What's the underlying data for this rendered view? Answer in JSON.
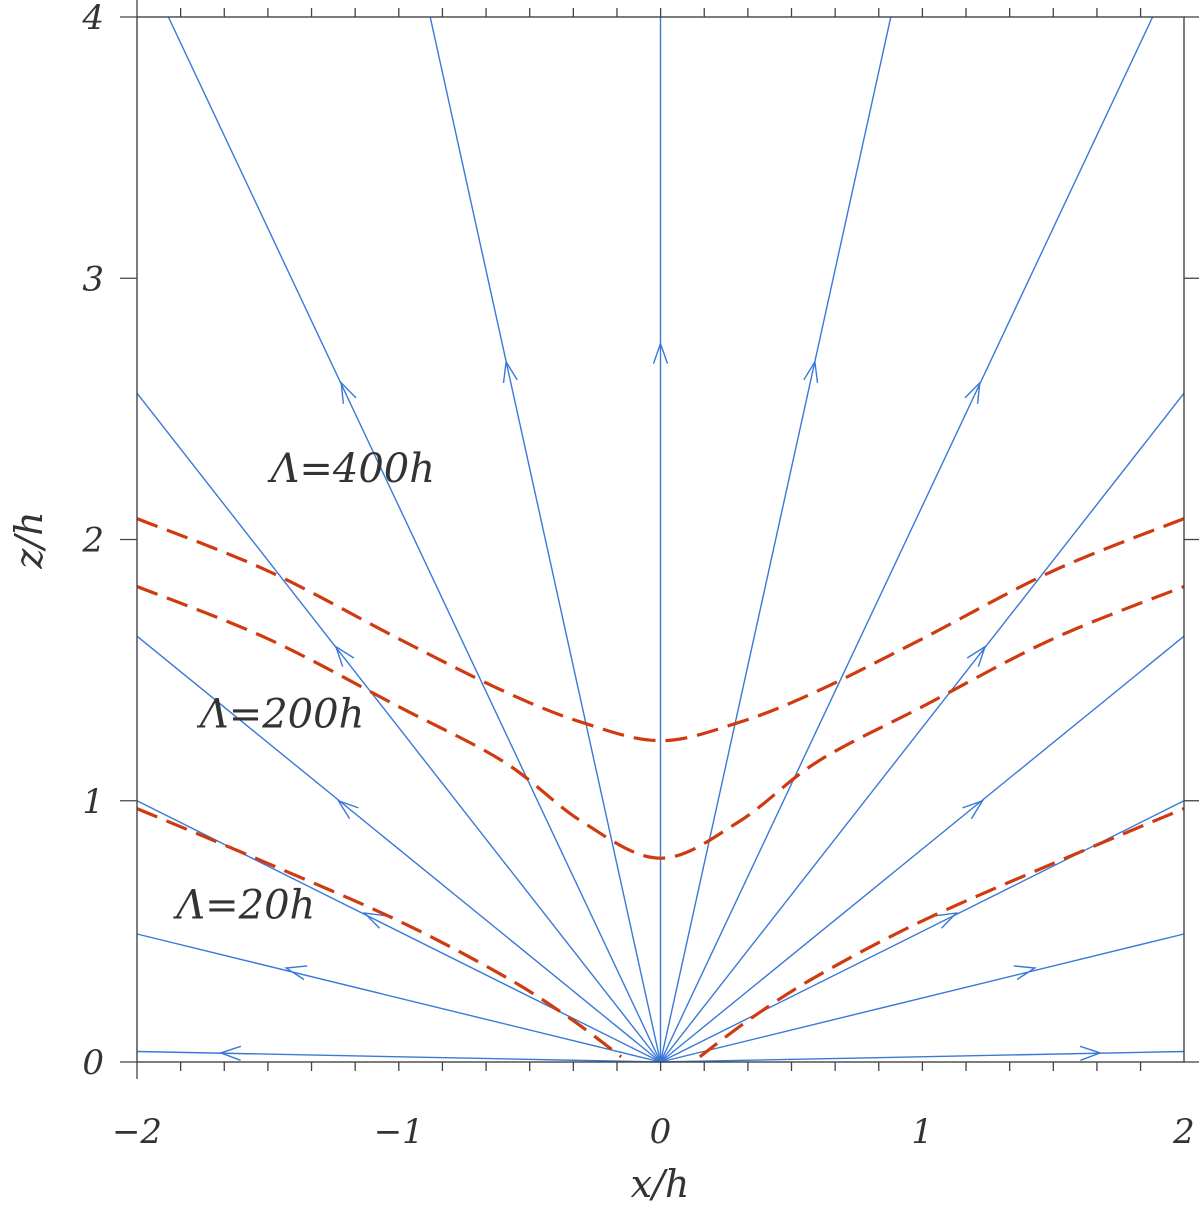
{
  "chart_data": {
    "type": "line",
    "title": "",
    "xlabel": "x/h",
    "ylabel": "z/h",
    "xlim": [
      -2,
      2
    ],
    "ylim": [
      0,
      4
    ],
    "x_major_ticks": [
      -2,
      -1,
      0,
      1,
      2
    ],
    "x_tick_labels": [
      "−2",
      "−1",
      "0",
      "1",
      "2"
    ],
    "y_major_ticks": [
      0,
      1,
      2,
      3,
      4
    ],
    "y_tick_labels": [
      "0",
      "1",
      "2",
      "3",
      "4"
    ],
    "minor_tick_step": 0.1667,
    "grid": false,
    "colors": {
      "streamlines": "#3a78d8",
      "contours": "#d03a10",
      "axes": "#444444",
      "text": "#333333"
    },
    "streamlines": [
      {
        "id": "sl-left-1",
        "points": [
          [
            0.0,
            0
          ],
          [
            -2.0,
            0.04
          ]
        ],
        "arrow_at": [
          -1.68,
          0.035
        ],
        "direction": "outward"
      },
      {
        "id": "sl-left-2",
        "points": [
          [
            0.0,
            0
          ],
          [
            -2.0,
            0.49
          ]
        ],
        "arrow_at": [
          -1.43,
          0.36
        ],
        "direction": "outward"
      },
      {
        "id": "sl-left-3",
        "points": [
          [
            0.0,
            0
          ],
          [
            -2.0,
            1.0
          ]
        ],
        "arrow_at": [
          -1.13,
          0.57
        ],
        "direction": "outward"
      },
      {
        "id": "sl-left-4",
        "points": [
          [
            0.0,
            0
          ],
          [
            -2.0,
            1.63
          ]
        ],
        "arrow_at": [
          -1.23,
          1.0
        ],
        "direction": "outward"
      },
      {
        "id": "sl-left-5",
        "points": [
          [
            0.0,
            0
          ],
          [
            -2.0,
            2.56
          ]
        ],
        "arrow_at": [
          -1.24,
          1.59
        ],
        "direction": "outward"
      },
      {
        "id": "sl-left-6",
        "points": [
          [
            0.0,
            0
          ],
          [
            -1.88,
            4.0
          ]
        ],
        "arrow_at": [
          -1.22,
          2.6
        ],
        "direction": "outward"
      },
      {
        "id": "sl-left-7",
        "points": [
          [
            0.0,
            0
          ],
          [
            -0.88,
            4.0
          ]
        ],
        "arrow_at": [
          -0.59,
          2.68
        ],
        "direction": "outward"
      },
      {
        "id": "sl-center",
        "points": [
          [
            0.0,
            0
          ],
          [
            0.0,
            4.0
          ]
        ],
        "arrow_at": [
          0.0,
          2.75
        ],
        "direction": "outward"
      },
      {
        "id": "sl-right-7",
        "points": [
          [
            0.0,
            0
          ],
          [
            0.88,
            4.0
          ]
        ],
        "arrow_at": [
          0.59,
          2.68
        ],
        "direction": "outward"
      },
      {
        "id": "sl-right-6",
        "points": [
          [
            0.0,
            0
          ],
          [
            1.88,
            4.0
          ]
        ],
        "arrow_at": [
          1.22,
          2.6
        ],
        "direction": "outward"
      },
      {
        "id": "sl-right-5",
        "points": [
          [
            0.0,
            0
          ],
          [
            2.0,
            2.56
          ]
        ],
        "arrow_at": [
          1.24,
          1.59
        ],
        "direction": "outward"
      },
      {
        "id": "sl-right-4",
        "points": [
          [
            0.0,
            0
          ],
          [
            2.0,
            1.63
          ]
        ],
        "arrow_at": [
          1.23,
          1.0
        ],
        "direction": "outward"
      },
      {
        "id": "sl-right-3",
        "points": [
          [
            0.0,
            0
          ],
          [
            2.0,
            1.0
          ]
        ],
        "arrow_at": [
          1.13,
          0.57
        ],
        "direction": "outward"
      },
      {
        "id": "sl-right-2",
        "points": [
          [
            0.0,
            0
          ],
          [
            2.0,
            0.49
          ]
        ],
        "arrow_at": [
          1.43,
          0.36
        ],
        "direction": "outward"
      },
      {
        "id": "sl-right-1",
        "points": [
          [
            0.0,
            0
          ],
          [
            2.0,
            0.04
          ]
        ],
        "arrow_at": [
          1.68,
          0.035
        ],
        "direction": "outward"
      }
    ],
    "contours": [
      {
        "label": "Λ=400h",
        "points": [
          [
            -2.0,
            2.08
          ],
          [
            -1.5,
            1.88
          ],
          [
            -1.0,
            1.62
          ],
          [
            -0.6,
            1.42
          ],
          [
            -0.3,
            1.3
          ],
          [
            0.0,
            1.23
          ],
          [
            0.3,
            1.3
          ],
          [
            0.6,
            1.42
          ],
          [
            1.0,
            1.62
          ],
          [
            1.5,
            1.88
          ],
          [
            2.0,
            2.08
          ]
        ]
      },
      {
        "label": "Λ=200h",
        "points": [
          [
            -2.0,
            1.82
          ],
          [
            -1.5,
            1.62
          ],
          [
            -1.0,
            1.36
          ],
          [
            -0.6,
            1.15
          ],
          [
            -0.3,
            0.92
          ],
          [
            0.0,
            0.78
          ],
          [
            0.3,
            0.92
          ],
          [
            0.6,
            1.15
          ],
          [
            1.0,
            1.36
          ],
          [
            1.5,
            1.62
          ],
          [
            2.0,
            1.82
          ]
        ]
      },
      {
        "label": "Λ=20h",
        "side": "left",
        "points": [
          [
            -2.0,
            0.97
          ],
          [
            -1.5,
            0.76
          ],
          [
            -1.0,
            0.54
          ],
          [
            -0.6,
            0.33
          ],
          [
            -0.35,
            0.17
          ],
          [
            -0.15,
            0.02
          ]
        ]
      },
      {
        "label": "Λ=20h",
        "side": "right",
        "points": [
          [
            0.15,
            0.02
          ],
          [
            0.35,
            0.17
          ],
          [
            0.6,
            0.33
          ],
          [
            1.0,
            0.54
          ],
          [
            1.5,
            0.76
          ],
          [
            2.0,
            0.97
          ]
        ]
      }
    ],
    "annotations": [
      {
        "text": "Λ=400h",
        "x": -1.49,
        "y": 2.22
      },
      {
        "text": "Λ=200h",
        "x": -1.76,
        "y": 1.28
      },
      {
        "text": "Λ=20h",
        "x": -1.85,
        "y": 0.55
      }
    ]
  }
}
